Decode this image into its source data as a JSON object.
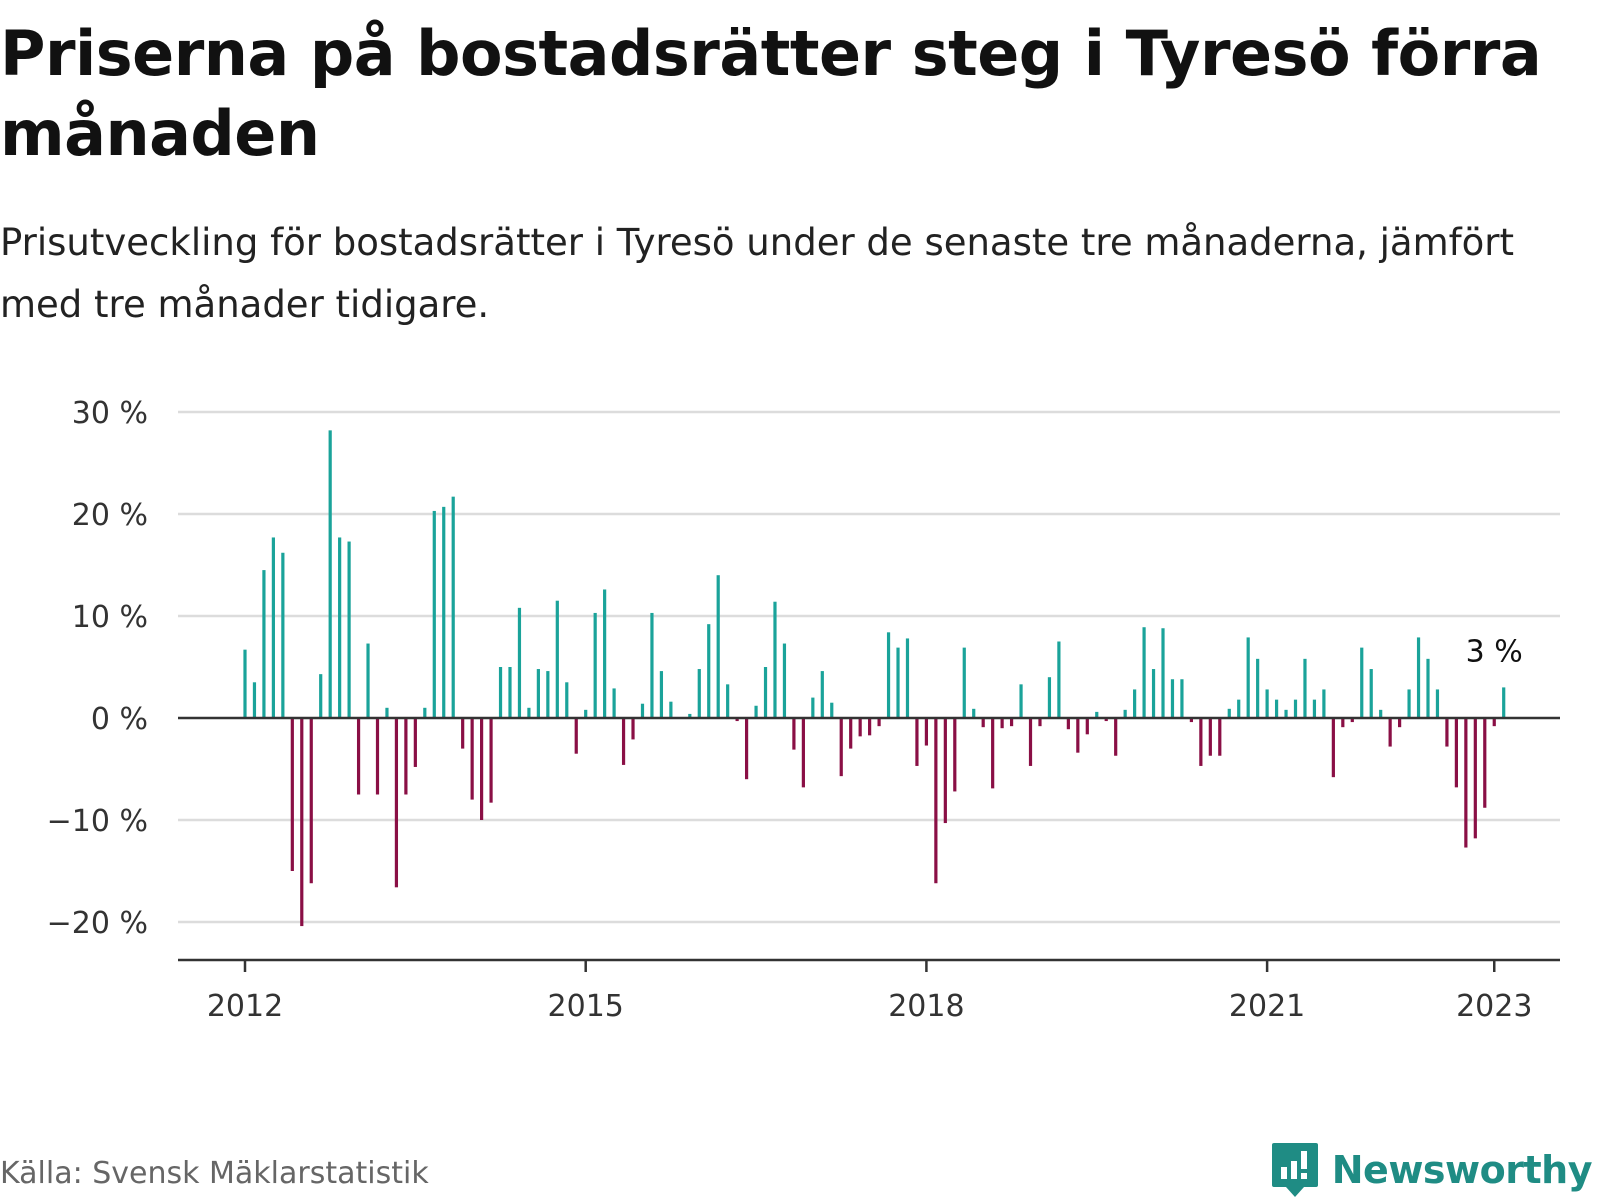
{
  "header": {
    "title": "Priserna på bostadsrätter steg i Tyresö förra månaden",
    "subtitle": "Prisutveckling för bostadsrätter i Tyresö under de senaste tre månaderna, jämfört med tre månader tidigare."
  },
  "footer": {
    "source": "Källa: Svensk Mäklarstatistik",
    "brand": "Newsworthy"
  },
  "colors": {
    "positive": "#1aa39a",
    "negative": "#8a0f45",
    "brand": "#1f8c84"
  },
  "chart_data": {
    "type": "bar",
    "title": "Priserna på bostadsrätter steg i Tyresö förra månaden",
    "subtitle": "Prisutveckling för bostadsrätter i Tyresö under de senaste tre månaderna, jämfört med tre månader tidigare.",
    "xlabel": "",
    "ylabel": "",
    "ylim": [
      -24,
      30
    ],
    "yticks": [
      30,
      20,
      10,
      0,
      -10,
      -20
    ],
    "ytick_labels": [
      "30 %",
      "20 %",
      "10 %",
      "0 %",
      "−10 %",
      "−20 %"
    ],
    "xticks": [
      "2012-01",
      "2015-01",
      "2018-01",
      "2021-01",
      "2023-01"
    ],
    "xtick_labels": [
      "2012",
      "2015",
      "2018",
      "2021",
      "2023"
    ],
    "grid": true,
    "start_month": "2012-01",
    "end_month": "2023-01",
    "values": [
      6.7,
      3.5,
      14.5,
      17.7,
      16.2,
      -15.0,
      -20.4,
      -16.2,
      4.3,
      28.2,
      17.7,
      17.3,
      -7.5,
      7.3,
      -7.5,
      1.0,
      -16.6,
      -7.5,
      -4.8,
      1.0,
      20.3,
      20.7,
      21.7,
      -3.0,
      -8.0,
      -10.0,
      -8.3,
      5.0,
      5.0,
      10.8,
      1.0,
      4.8,
      4.6,
      11.5,
      3.5,
      -3.5,
      0.8,
      10.3,
      12.6,
      2.9,
      -4.6,
      -2.1,
      1.4,
      10.3,
      4.6,
      1.6,
      0.0,
      0.4,
      4.8,
      9.2,
      14.0,
      3.3,
      -0.3,
      -6.0,
      1.2,
      5.0,
      11.4,
      7.3,
      -3.1,
      -6.8,
      2.0,
      4.6,
      1.5,
      -5.7,
      -3.0,
      -1.8,
      -1.7,
      -0.8,
      8.4,
      6.9,
      7.8,
      -4.7,
      -2.7,
      -16.2,
      -10.3,
      -7.2,
      6.9,
      0.9,
      -0.9,
      -6.9,
      -1.0,
      -0.8,
      3.3,
      -4.7,
      -0.8,
      4.0,
      7.5,
      -1.1,
      -3.4,
      -1.6,
      0.6,
      -0.3,
      -3.7,
      0.8,
      2.8,
      8.9,
      4.8,
      8.8,
      3.8,
      3.8,
      -0.4,
      -4.7,
      -3.7,
      -3.7,
      0.9,
      1.8,
      7.9,
      5.8,
      2.8,
      1.8,
      0.8,
      1.8,
      5.8,
      1.8,
      2.8,
      -5.8,
      -0.9,
      -0.4,
      6.9,
      4.8,
      0.8,
      -2.8,
      -0.9,
      2.8,
      7.9,
      5.8,
      2.8,
      -2.8,
      -6.8,
      -12.7,
      -11.8,
      -8.8,
      -0.8,
      3.0
    ],
    "annotation": {
      "label": "3 %",
      "month": "2023-01",
      "value": 3.0
    }
  }
}
